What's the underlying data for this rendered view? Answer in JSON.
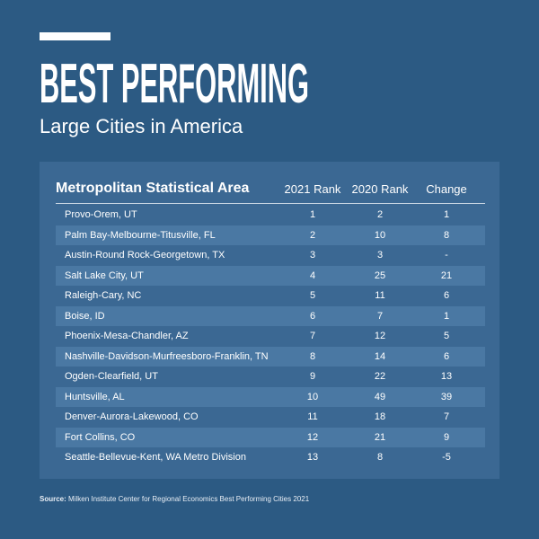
{
  "header": {
    "title": "BEST PERFORMING",
    "subtitle": "Large Cities in America"
  },
  "table": {
    "columns": [
      "Metropolitan Statistical Area",
      "2021 Rank",
      "2020 Rank",
      "Change"
    ],
    "rows": [
      [
        "Provo-Orem, UT",
        1,
        2,
        1
      ],
      [
        "Palm Bay-Melbourne-Titusville, FL",
        2,
        10,
        8
      ],
      [
        "Austin-Round Rock-Georgetown, TX",
        3,
        3,
        "-"
      ],
      [
        "Salt Lake City, UT",
        4,
        25,
        21
      ],
      [
        "Raleigh-Cary, NC",
        5,
        11,
        6
      ],
      [
        "Boise, ID",
        6,
        7,
        1
      ],
      [
        "Phoenix-Mesa-Chandler, AZ",
        7,
        12,
        5
      ],
      [
        "Nashville-Davidson-Murfreesboro-Franklin, TN",
        8,
        14,
        6
      ],
      [
        "Ogden-Clearfield, UT",
        9,
        22,
        13
      ],
      [
        "Huntsville, AL",
        10,
        49,
        39
      ],
      [
        "Denver-Aurora-Lakewood, CO",
        11,
        18,
        7
      ],
      [
        "Fort Collins, CO",
        12,
        21,
        9
      ],
      [
        "Seattle-Bellevue-Kent, WA Metro Division",
        13,
        8,
        -5
      ]
    ]
  },
  "footer": {
    "source_label": "Source:",
    "source_text": "Milken Institute Center for Regional Economics Best Performing Cities 2021"
  }
}
